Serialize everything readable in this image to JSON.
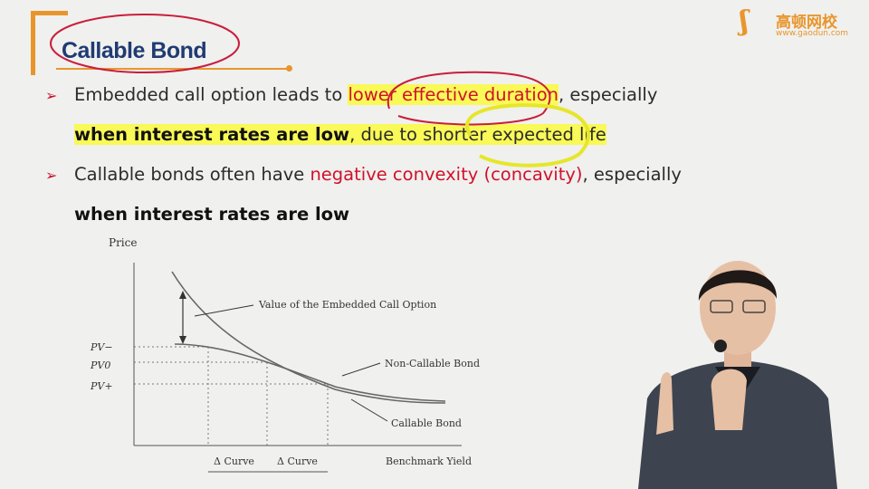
{
  "slide": {
    "title": "Callable Bond",
    "logo": {
      "chinese": "高顿网校",
      "url": "www.gaodun.com"
    },
    "bullets": [
      {
        "line1": {
          "pre": "Embedded call option leads to ",
          "red": "lower effective duration",
          "post": ", especially"
        },
        "line2": {
          "bold": "when interest rates are low",
          "post": ", due to shorter expected life"
        }
      },
      {
        "line1": {
          "pre": "Callable bonds often have ",
          "red": "negative convexity (concavity)",
          "post": ", especially"
        },
        "line2": {
          "bold": "when interest rates are low"
        }
      }
    ]
  },
  "chart_data": {
    "type": "line",
    "ylabel": "Price",
    "xlabel": "Benchmark Yield",
    "y_ticks": [
      "PV−",
      "PV0",
      "PV+"
    ],
    "x_ticks": [
      "Δ Curve",
      "Δ Curve"
    ],
    "annotations": [
      "Value of the Embedded Call Option",
      "Non-Callable Bond",
      "Callable Bond"
    ],
    "series": [
      {
        "name": "Non-Callable Bond",
        "shape": "convex decreasing"
      },
      {
        "name": "Callable Bond",
        "shape": "concave at low yields, converges to non-callable at high yields"
      }
    ]
  },
  "colors": {
    "accent": "#e8962c",
    "title": "#1f3b73",
    "highlight_red": "#d0112b",
    "marker_yellow": "#f5f53a"
  }
}
